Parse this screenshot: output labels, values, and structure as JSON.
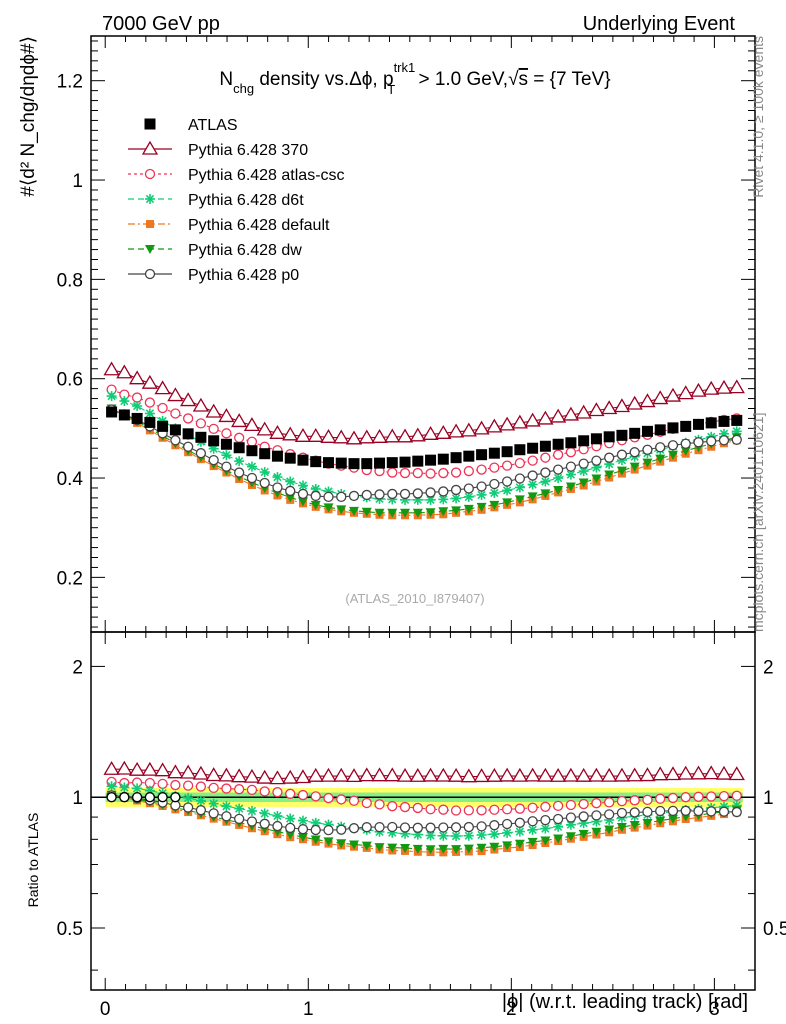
{
  "header": {
    "left": "7000 GeV pp",
    "right": "Underlying Event"
  },
  "side_labels": {
    "rivet": "Rivet 4.1.0, ≥ 100k events",
    "mcplots": "mcplots.cern.ch [arXiv:2401.10621]"
  },
  "title": {
    "n": "N",
    "chg": "chg",
    "mid": " density vs.Δϕ, p",
    "sup": "trk1",
    "sub": "T",
    "tail": " > 1.0 GeV,",
    "sqrt": "√",
    "s": "s",
    "energy": " = {7 TeV}"
  },
  "watermark": "(ATLAS_2010_I879407)",
  "ylabel_main": "#⟨d² N_chg/dηdϕ#⟩",
  "ylabel_ratio": "Ratio to ATLAS",
  "xlabel": "|ϕ| (w.r.t. leading track) [rad]",
  "colors": {
    "ATLAS": "#000000",
    "p370": "#990022",
    "atlascsc": "#ee3355",
    "d6t": "#11cc77",
    "default": "#ee7722",
    "dw": "#119911",
    "p0": "#444444",
    "band_outer": "#ffff66",
    "band_inner": "#88ee88"
  },
  "chart_data": {
    "type": "scatter",
    "x": [
      0.0314,
      0.0942,
      0.1571,
      0.2199,
      0.2827,
      0.3456,
      0.4084,
      0.4712,
      0.5341,
      0.5969,
      0.6597,
      0.7226,
      0.7854,
      0.8482,
      0.9111,
      0.9739,
      1.0367,
      1.0996,
      1.1624,
      1.2252,
      1.2881,
      1.3509,
      1.4137,
      1.4765,
      1.5394,
      1.6022,
      1.665,
      1.7279,
      1.7907,
      1.8535,
      1.9164,
      1.9792,
      2.042,
      2.1049,
      2.1677,
      2.2305,
      2.2934,
      2.3562,
      2.419,
      2.4819,
      2.5447,
      2.6075,
      2.6704,
      2.7332,
      2.796,
      2.8588,
      2.9217,
      2.9845,
      3.0473,
      3.1102
    ],
    "main_panel": {
      "ylim": [
        0.09,
        1.29
      ],
      "xlim": [
        -0.07,
        3.2
      ],
      "yticks": [
        "0.2",
        "0.4",
        "0.6",
        "0.8",
        "1",
        "1.2"
      ],
      "xticks": [
        "0",
        "1",
        "2",
        "3"
      ]
    },
    "ratio_panel": {
      "ylim": [
        0.36,
        2.4
      ],
      "yticks": [
        "0.5",
        "1",
        "2"
      ]
    },
    "ratio_band": {
      "outer": 0.05,
      "inner": 0.025
    },
    "series": [
      {
        "name": "ATLAS",
        "key": "ATLAS",
        "marker": "square",
        "line": "none",
        "values": [
          0.533,
          0.527,
          0.52,
          0.512,
          0.504,
          0.497,
          0.489,
          0.482,
          0.475,
          0.468,
          0.461,
          0.455,
          0.449,
          0.444,
          0.44,
          0.436,
          0.433,
          0.431,
          0.43,
          0.429,
          0.429,
          0.43,
          0.431,
          0.432,
          0.434,
          0.436,
          0.438,
          0.441,
          0.444,
          0.447,
          0.45,
          0.453,
          0.457,
          0.46,
          0.464,
          0.468,
          0.471,
          0.475,
          0.479,
          0.483,
          0.486,
          0.49,
          0.494,
          0.497,
          0.501,
          0.504,
          0.508,
          0.511,
          0.514,
          0.516
        ]
      },
      {
        "name": "Pythia 6.428 370",
        "key": "p370",
        "marker": "triangle-open",
        "line": "solid",
        "values": [
          0.618,
          0.612,
          0.6,
          0.591,
          0.58,
          0.566,
          0.556,
          0.545,
          0.533,
          0.524,
          0.514,
          0.506,
          0.497,
          0.49,
          0.487,
          0.484,
          0.484,
          0.482,
          0.481,
          0.479,
          0.481,
          0.482,
          0.483,
          0.483,
          0.485,
          0.488,
          0.49,
          0.493,
          0.495,
          0.499,
          0.503,
          0.507,
          0.511,
          0.515,
          0.519,
          0.523,
          0.527,
          0.531,
          0.536,
          0.54,
          0.544,
          0.549,
          0.554,
          0.56,
          0.565,
          0.57,
          0.575,
          0.579,
          0.581,
          0.582
        ]
      },
      {
        "name": "Pythia 6.428 atlas-csc",
        "key": "atlascsc",
        "marker": "circle-open",
        "line": "dotted",
        "values": [
          0.578,
          0.568,
          0.562,
          0.552,
          0.541,
          0.53,
          0.52,
          0.51,
          0.499,
          0.49,
          0.481,
          0.473,
          0.463,
          0.456,
          0.448,
          0.441,
          0.435,
          0.429,
          0.425,
          0.421,
          0.416,
          0.414,
          0.411,
          0.41,
          0.41,
          0.409,
          0.41,
          0.411,
          0.414,
          0.417,
          0.421,
          0.425,
          0.43,
          0.435,
          0.441,
          0.447,
          0.452,
          0.458,
          0.464,
          0.47,
          0.476,
          0.482,
          0.487,
          0.493,
          0.499,
          0.504,
          0.509,
          0.513,
          0.517,
          0.52
        ]
      },
      {
        "name": "Pythia 6.428 d6t",
        "key": "d6t",
        "marker": "star",
        "line": "dashed",
        "values": [
          0.565,
          0.555,
          0.545,
          0.53,
          0.515,
          0.5,
          0.487,
          0.473,
          0.459,
          0.446,
          0.434,
          0.423,
          0.412,
          0.402,
          0.393,
          0.385,
          0.378,
          0.373,
          0.368,
          0.364,
          0.361,
          0.358,
          0.357,
          0.356,
          0.356,
          0.356,
          0.357,
          0.359,
          0.362,
          0.366,
          0.37,
          0.375,
          0.381,
          0.387,
          0.393,
          0.4,
          0.407,
          0.414,
          0.421,
          0.428,
          0.436,
          0.443,
          0.45,
          0.457,
          0.464,
          0.471,
          0.477,
          0.483,
          0.489,
          0.494
        ]
      },
      {
        "name": "Pythia 6.428 default",
        "key": "default",
        "marker": "square-small",
        "line": "dashdot",
        "values": [
          0.537,
          0.525,
          0.511,
          0.496,
          0.481,
          0.466,
          0.452,
          0.438,
          0.424,
          0.411,
          0.398,
          0.386,
          0.375,
          0.365,
          0.356,
          0.349,
          0.342,
          0.337,
          0.333,
          0.33,
          0.328,
          0.326,
          0.325,
          0.325,
          0.325,
          0.326,
          0.327,
          0.33,
          0.333,
          0.336,
          0.341,
          0.346,
          0.351,
          0.357,
          0.364,
          0.371,
          0.378,
          0.385,
          0.393,
          0.401,
          0.409,
          0.417,
          0.425,
          0.433,
          0.441,
          0.449,
          0.456,
          0.463,
          0.47,
          0.476
        ]
      },
      {
        "name": "Pythia 6.428 dw",
        "key": "dw",
        "marker": "triangle-down",
        "line": "dashed",
        "values": [
          0.54,
          0.528,
          0.514,
          0.5,
          0.485,
          0.47,
          0.456,
          0.442,
          0.428,
          0.415,
          0.403,
          0.391,
          0.38,
          0.37,
          0.361,
          0.353,
          0.346,
          0.341,
          0.337,
          0.334,
          0.332,
          0.33,
          0.33,
          0.33,
          0.33,
          0.331,
          0.333,
          0.335,
          0.338,
          0.342,
          0.346,
          0.351,
          0.357,
          0.363,
          0.369,
          0.376,
          0.383,
          0.391,
          0.399,
          0.407,
          0.415,
          0.423,
          0.431,
          0.439,
          0.447,
          0.455,
          0.462,
          0.469,
          0.476,
          0.482
        ]
      },
      {
        "name": "Pythia 6.428 p0",
        "key": "p0",
        "marker": "circle-open",
        "line": "solid",
        "values": [
          0.538,
          0.528,
          0.517,
          0.504,
          0.49,
          0.476,
          0.463,
          0.45,
          0.436,
          0.423,
          0.411,
          0.4,
          0.39,
          0.381,
          0.374,
          0.368,
          0.364,
          0.362,
          0.362,
          0.364,
          0.366,
          0.367,
          0.368,
          0.368,
          0.369,
          0.371,
          0.373,
          0.376,
          0.379,
          0.383,
          0.388,
          0.393,
          0.399,
          0.405,
          0.411,
          0.417,
          0.423,
          0.429,
          0.435,
          0.441,
          0.447,
          0.452,
          0.457,
          0.462,
          0.466,
          0.469,
          0.472,
          0.474,
          0.476,
          0.477
        ]
      }
    ]
  }
}
